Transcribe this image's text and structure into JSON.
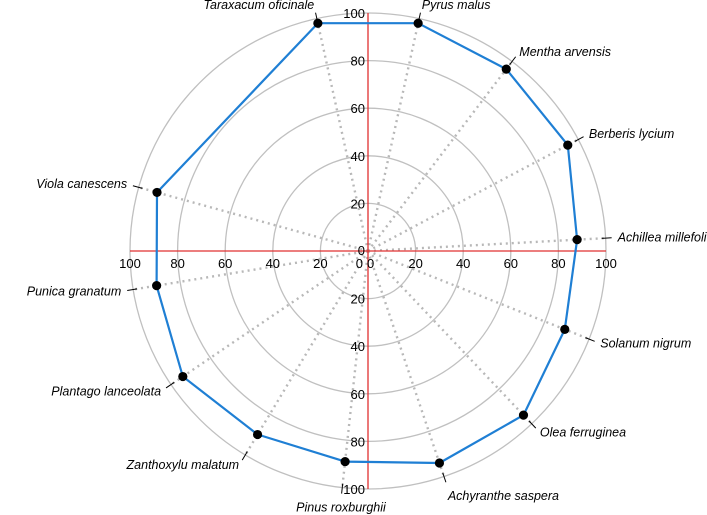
{
  "chart_data": {
    "type": "radar",
    "categories": [
      "Taraxacum oficinale",
      "Pyrus malus",
      "Mentha arvensis",
      "Berberis lycium",
      "Achillea millefolium",
      "Solanum nigrum",
      "Olea ferruginea",
      "Achyranthe saspera",
      "Pinus roxburghii",
      "Zanthoxylu malatum",
      "Plantago lanceolata",
      "Punica granatum",
      "Viola canescens"
    ],
    "values": [
      98,
      98,
      96,
      95,
      88,
      89,
      95,
      94,
      89,
      90,
      94,
      90,
      92
    ],
    "rlim": [
      0,
      100
    ],
    "ticks": [
      "0",
      "20",
      "40",
      "60",
      "80",
      "100"
    ],
    "grid": true,
    "colors": {
      "series": "#1f7fd4",
      "markers": "#000000",
      "axes": "#e03030",
      "grid": "#c0c0c0",
      "spokes": "#b8b8b8"
    }
  }
}
